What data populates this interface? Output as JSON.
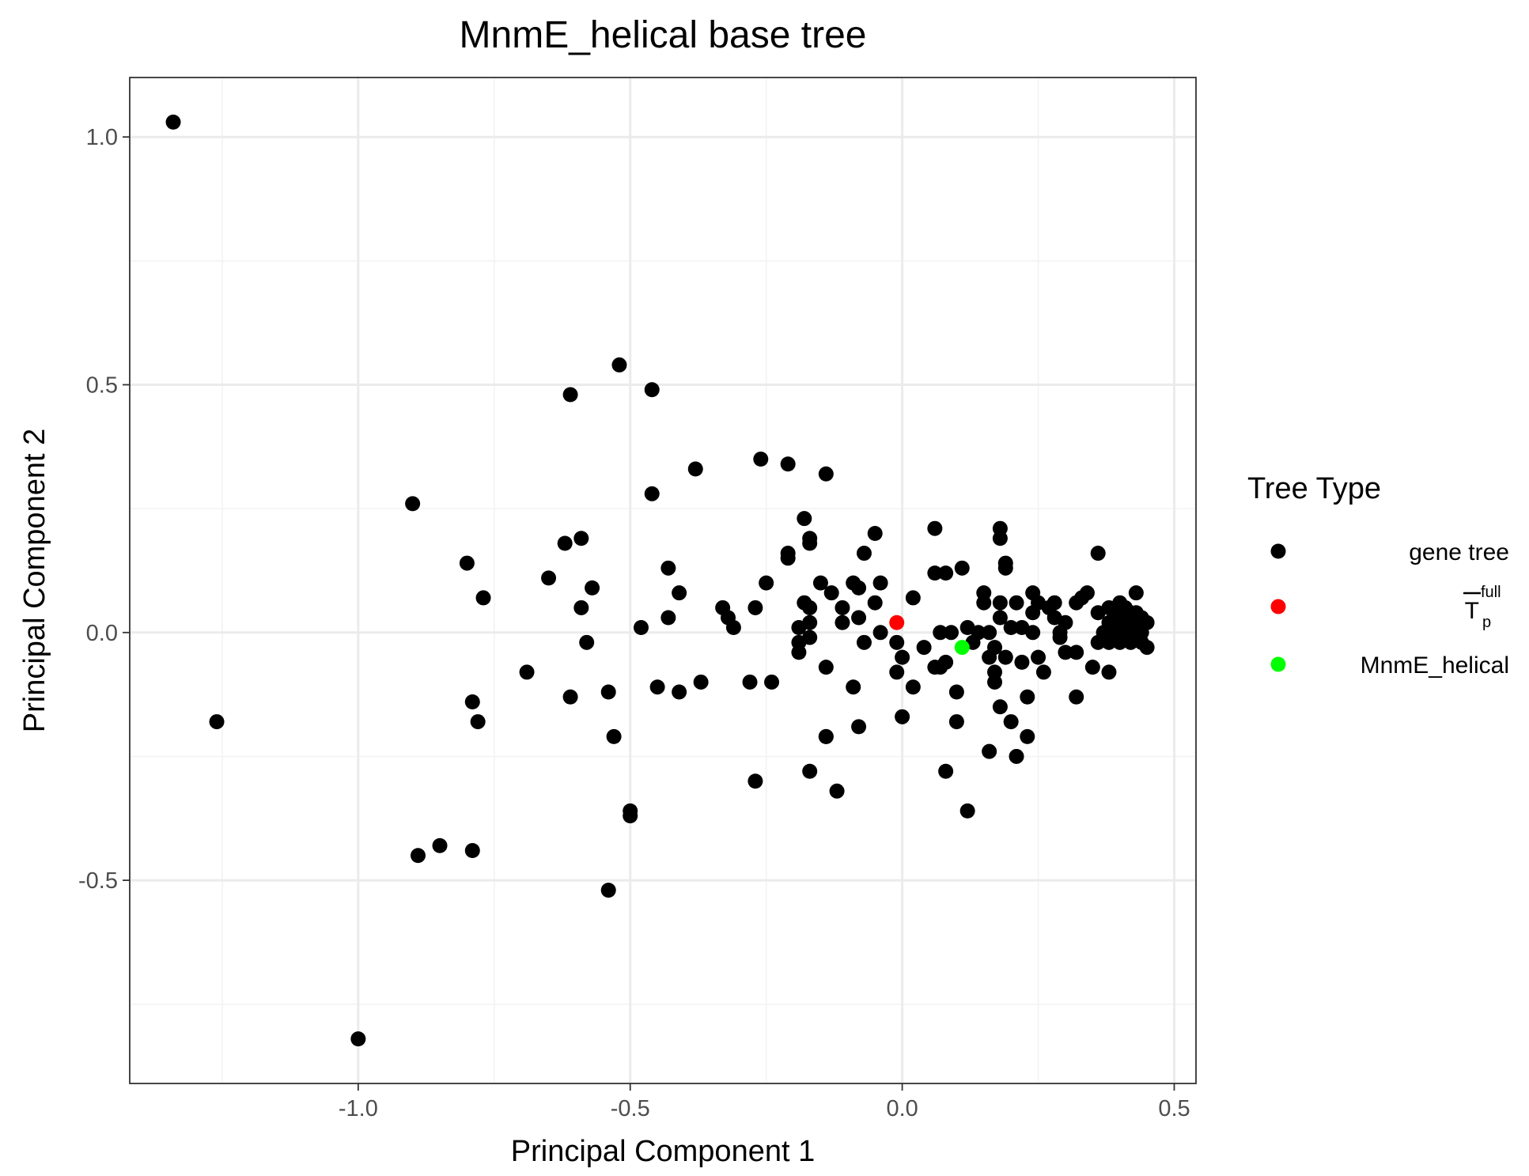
{
  "chart_data": {
    "type": "scatter",
    "title": "MnmE_helical base tree",
    "xlabel": "Principal Component 1",
    "ylabel": "Principal Component 2",
    "xlim": [
      -1.42,
      0.54
    ],
    "ylim": [
      -0.91,
      1.12
    ],
    "x_ticks": [
      -1.0,
      -0.5,
      0.0,
      0.5
    ],
    "x_tick_labels": [
      "-1.0",
      "-0.5",
      "0.0",
      "0.5"
    ],
    "y_ticks": [
      -0.5,
      0.0,
      0.5,
      1.0
    ],
    "y_tick_labels": [
      "-0.5",
      "0.0",
      "0.5",
      "1.0"
    ],
    "x_minor_ticks": [
      -1.25,
      -0.75,
      -0.25,
      0.25
    ],
    "y_minor_ticks": [
      -0.75,
      -0.25,
      0.25,
      0.75
    ],
    "grid": true,
    "legend": {
      "title": "Tree Type",
      "placement": "right",
      "entries": [
        {
          "label": "gene tree",
          "color": "#000000"
        },
        {
          "label": "T",
          "overline": true,
          "superscript": "full",
          "subscript": "p",
          "color": "#ff0000"
        },
        {
          "label": "MnmE_helical",
          "color": "#00ff00"
        }
      ]
    },
    "series": [
      {
        "name": "gene tree",
        "color": "#000000",
        "points": [
          [
            -1.34,
            1.03
          ],
          [
            -1.26,
            -0.18
          ],
          [
            -1.0,
            -0.82
          ],
          [
            -0.9,
            0.26
          ],
          [
            -0.89,
            -0.45
          ],
          [
            -0.85,
            -0.43
          ],
          [
            -0.8,
            0.14
          ],
          [
            -0.79,
            -0.14
          ],
          [
            -0.79,
            -0.44
          ],
          [
            -0.78,
            -0.18
          ],
          [
            -0.77,
            0.07
          ],
          [
            -0.69,
            -0.08
          ],
          [
            -0.65,
            0.11
          ],
          [
            -0.62,
            0.18
          ],
          [
            -0.61,
            0.48
          ],
          [
            -0.61,
            -0.13
          ],
          [
            -0.59,
            0.19
          ],
          [
            -0.59,
            0.05
          ],
          [
            -0.58,
            -0.02
          ],
          [
            -0.57,
            0.09
          ],
          [
            -0.54,
            -0.12
          ],
          [
            -0.54,
            -0.52
          ],
          [
            -0.53,
            -0.21
          ],
          [
            -0.52,
            0.54
          ],
          [
            -0.5,
            -0.36
          ],
          [
            -0.5,
            -0.37
          ],
          [
            -0.48,
            0.01
          ],
          [
            -0.46,
            0.49
          ],
          [
            -0.46,
            0.28
          ],
          [
            -0.45,
            -0.11
          ],
          [
            -0.43,
            0.13
          ],
          [
            -0.43,
            0.03
          ],
          [
            -0.41,
            0.08
          ],
          [
            -0.41,
            -0.12
          ],
          [
            -0.38,
            0.33
          ],
          [
            -0.37,
            -0.1
          ],
          [
            -0.33,
            0.05
          ],
          [
            -0.32,
            0.03
          ],
          [
            -0.31,
            0.01
          ],
          [
            -0.28,
            -0.1
          ],
          [
            -0.27,
            -0.3
          ],
          [
            -0.27,
            0.05
          ],
          [
            -0.26,
            0.35
          ],
          [
            -0.25,
            0.1
          ],
          [
            -0.24,
            -0.1
          ],
          [
            -0.21,
            0.34
          ],
          [
            -0.21,
            0.16
          ],
          [
            -0.21,
            0.15
          ],
          [
            -0.19,
            -0.04
          ],
          [
            -0.19,
            0.01
          ],
          [
            -0.19,
            -0.02
          ],
          [
            -0.18,
            0.23
          ],
          [
            -0.18,
            0.06
          ],
          [
            -0.17,
            0.19
          ],
          [
            -0.17,
            0.18
          ],
          [
            -0.17,
            -0.28
          ],
          [
            -0.17,
            0.05
          ],
          [
            -0.17,
            0.02
          ],
          [
            -0.17,
            -0.01
          ],
          [
            -0.15,
            0.1
          ],
          [
            -0.14,
            0.32
          ],
          [
            -0.14,
            -0.07
          ],
          [
            -0.14,
            -0.21
          ],
          [
            -0.14,
            -0.21
          ],
          [
            -0.13,
            0.08
          ],
          [
            -0.12,
            -0.32
          ],
          [
            -0.11,
            0.05
          ],
          [
            -0.11,
            0.02
          ],
          [
            -0.09,
            0.1
          ],
          [
            -0.09,
            -0.11
          ],
          [
            -0.08,
            0.09
          ],
          [
            -0.08,
            0.03
          ],
          [
            -0.08,
            -0.19
          ],
          [
            -0.07,
            0.16
          ],
          [
            -0.07,
            -0.02
          ],
          [
            -0.05,
            0.2
          ],
          [
            -0.05,
            0.06
          ],
          [
            -0.04,
            0.1
          ],
          [
            -0.04,
            0.0
          ],
          [
            -0.01,
            -0.02
          ],
          [
            -0.01,
            -0.08
          ],
          [
            -0.0,
            -0.05
          ],
          [
            -0.0,
            -0.17
          ],
          [
            0.02,
            0.07
          ],
          [
            0.02,
            -0.11
          ],
          [
            0.04,
            -0.03
          ],
          [
            0.06,
            -0.07
          ],
          [
            0.06,
            0.12
          ],
          [
            0.06,
            0.21
          ],
          [
            0.07,
            0.0
          ],
          [
            0.07,
            -0.07
          ],
          [
            0.08,
            0.12
          ],
          [
            0.08,
            -0.06
          ],
          [
            0.08,
            -0.28
          ],
          [
            0.09,
            0.0
          ],
          [
            0.1,
            -0.12
          ],
          [
            0.1,
            -0.18
          ],
          [
            0.11,
            0.13
          ],
          [
            0.12,
            -0.36
          ],
          [
            0.12,
            0.01
          ],
          [
            0.13,
            -0.02
          ],
          [
            0.14,
            0.0
          ],
          [
            0.15,
            0.08
          ],
          [
            0.15,
            0.06
          ],
          [
            0.16,
            -0.05
          ],
          [
            0.16,
            -0.24
          ],
          [
            0.16,
            0.0
          ],
          [
            0.17,
            -0.03
          ],
          [
            0.17,
            -0.08
          ],
          [
            0.17,
            -0.1
          ],
          [
            0.18,
            0.03
          ],
          [
            0.18,
            0.21
          ],
          [
            0.18,
            -0.15
          ],
          [
            0.18,
            0.19
          ],
          [
            0.18,
            0.06
          ],
          [
            0.19,
            0.14
          ],
          [
            0.19,
            0.13
          ],
          [
            0.19,
            -0.05
          ],
          [
            0.2,
            -0.18
          ],
          [
            0.2,
            0.01
          ],
          [
            0.21,
            0.06
          ],
          [
            0.21,
            -0.25
          ],
          [
            0.22,
            0.01
          ],
          [
            0.22,
            -0.06
          ],
          [
            0.23,
            -0.13
          ],
          [
            0.23,
            -0.21
          ],
          [
            0.24,
            0.08
          ],
          [
            0.24,
            0.04
          ],
          [
            0.24,
            0.0
          ],
          [
            0.25,
            -0.05
          ],
          [
            0.25,
            0.06
          ],
          [
            0.26,
            -0.08
          ],
          [
            0.27,
            0.05
          ],
          [
            0.28,
            0.06
          ],
          [
            0.28,
            0.03
          ],
          [
            0.29,
            0.0
          ],
          [
            0.29,
            -0.01
          ],
          [
            0.3,
            0.02
          ],
          [
            0.3,
            -0.04
          ],
          [
            0.32,
            -0.04
          ],
          [
            0.32,
            -0.13
          ],
          [
            0.32,
            0.06
          ],
          [
            0.33,
            0.07
          ],
          [
            0.34,
            0.08
          ],
          [
            0.35,
            -0.07
          ],
          [
            0.36,
            0.16
          ],
          [
            0.36,
            -0.02
          ],
          [
            0.36,
            0.04
          ],
          [
            0.37,
            -0.01
          ],
          [
            0.37,
            0.0
          ],
          [
            0.38,
            -0.08
          ],
          [
            0.38,
            0.05
          ],
          [
            0.38,
            0.02
          ],
          [
            0.38,
            -0.02
          ],
          [
            0.39,
            0.04
          ],
          [
            0.39,
            0.0
          ],
          [
            0.39,
            -0.01
          ],
          [
            0.39,
            0.03
          ],
          [
            0.4,
            0.05
          ],
          [
            0.4,
            0.01
          ],
          [
            0.4,
            -0.02
          ],
          [
            0.4,
            0.06
          ],
          [
            0.41,
            0.03
          ],
          [
            0.41,
            0.0
          ],
          [
            0.41,
            0.05
          ],
          [
            0.41,
            -0.01
          ],
          [
            0.41,
            0.02
          ],
          [
            0.42,
            0.04
          ],
          [
            0.42,
            -0.02
          ],
          [
            0.42,
            0.01
          ],
          [
            0.43,
            0.08
          ],
          [
            0.43,
            0.02
          ],
          [
            0.43,
            -0.01
          ],
          [
            0.43,
            0.04
          ],
          [
            0.44,
            0.0
          ],
          [
            0.44,
            0.03
          ],
          [
            0.44,
            -0.02
          ],
          [
            0.45,
            0.02
          ],
          [
            0.45,
            -0.03
          ]
        ]
      },
      {
        "name": "T",
        "color": "#ff0000",
        "points": [
          [
            -0.01,
            0.02
          ]
        ]
      },
      {
        "name": "MnmE_helical",
        "color": "#00ff00",
        "points": [
          [
            0.11,
            -0.03
          ]
        ]
      }
    ]
  }
}
